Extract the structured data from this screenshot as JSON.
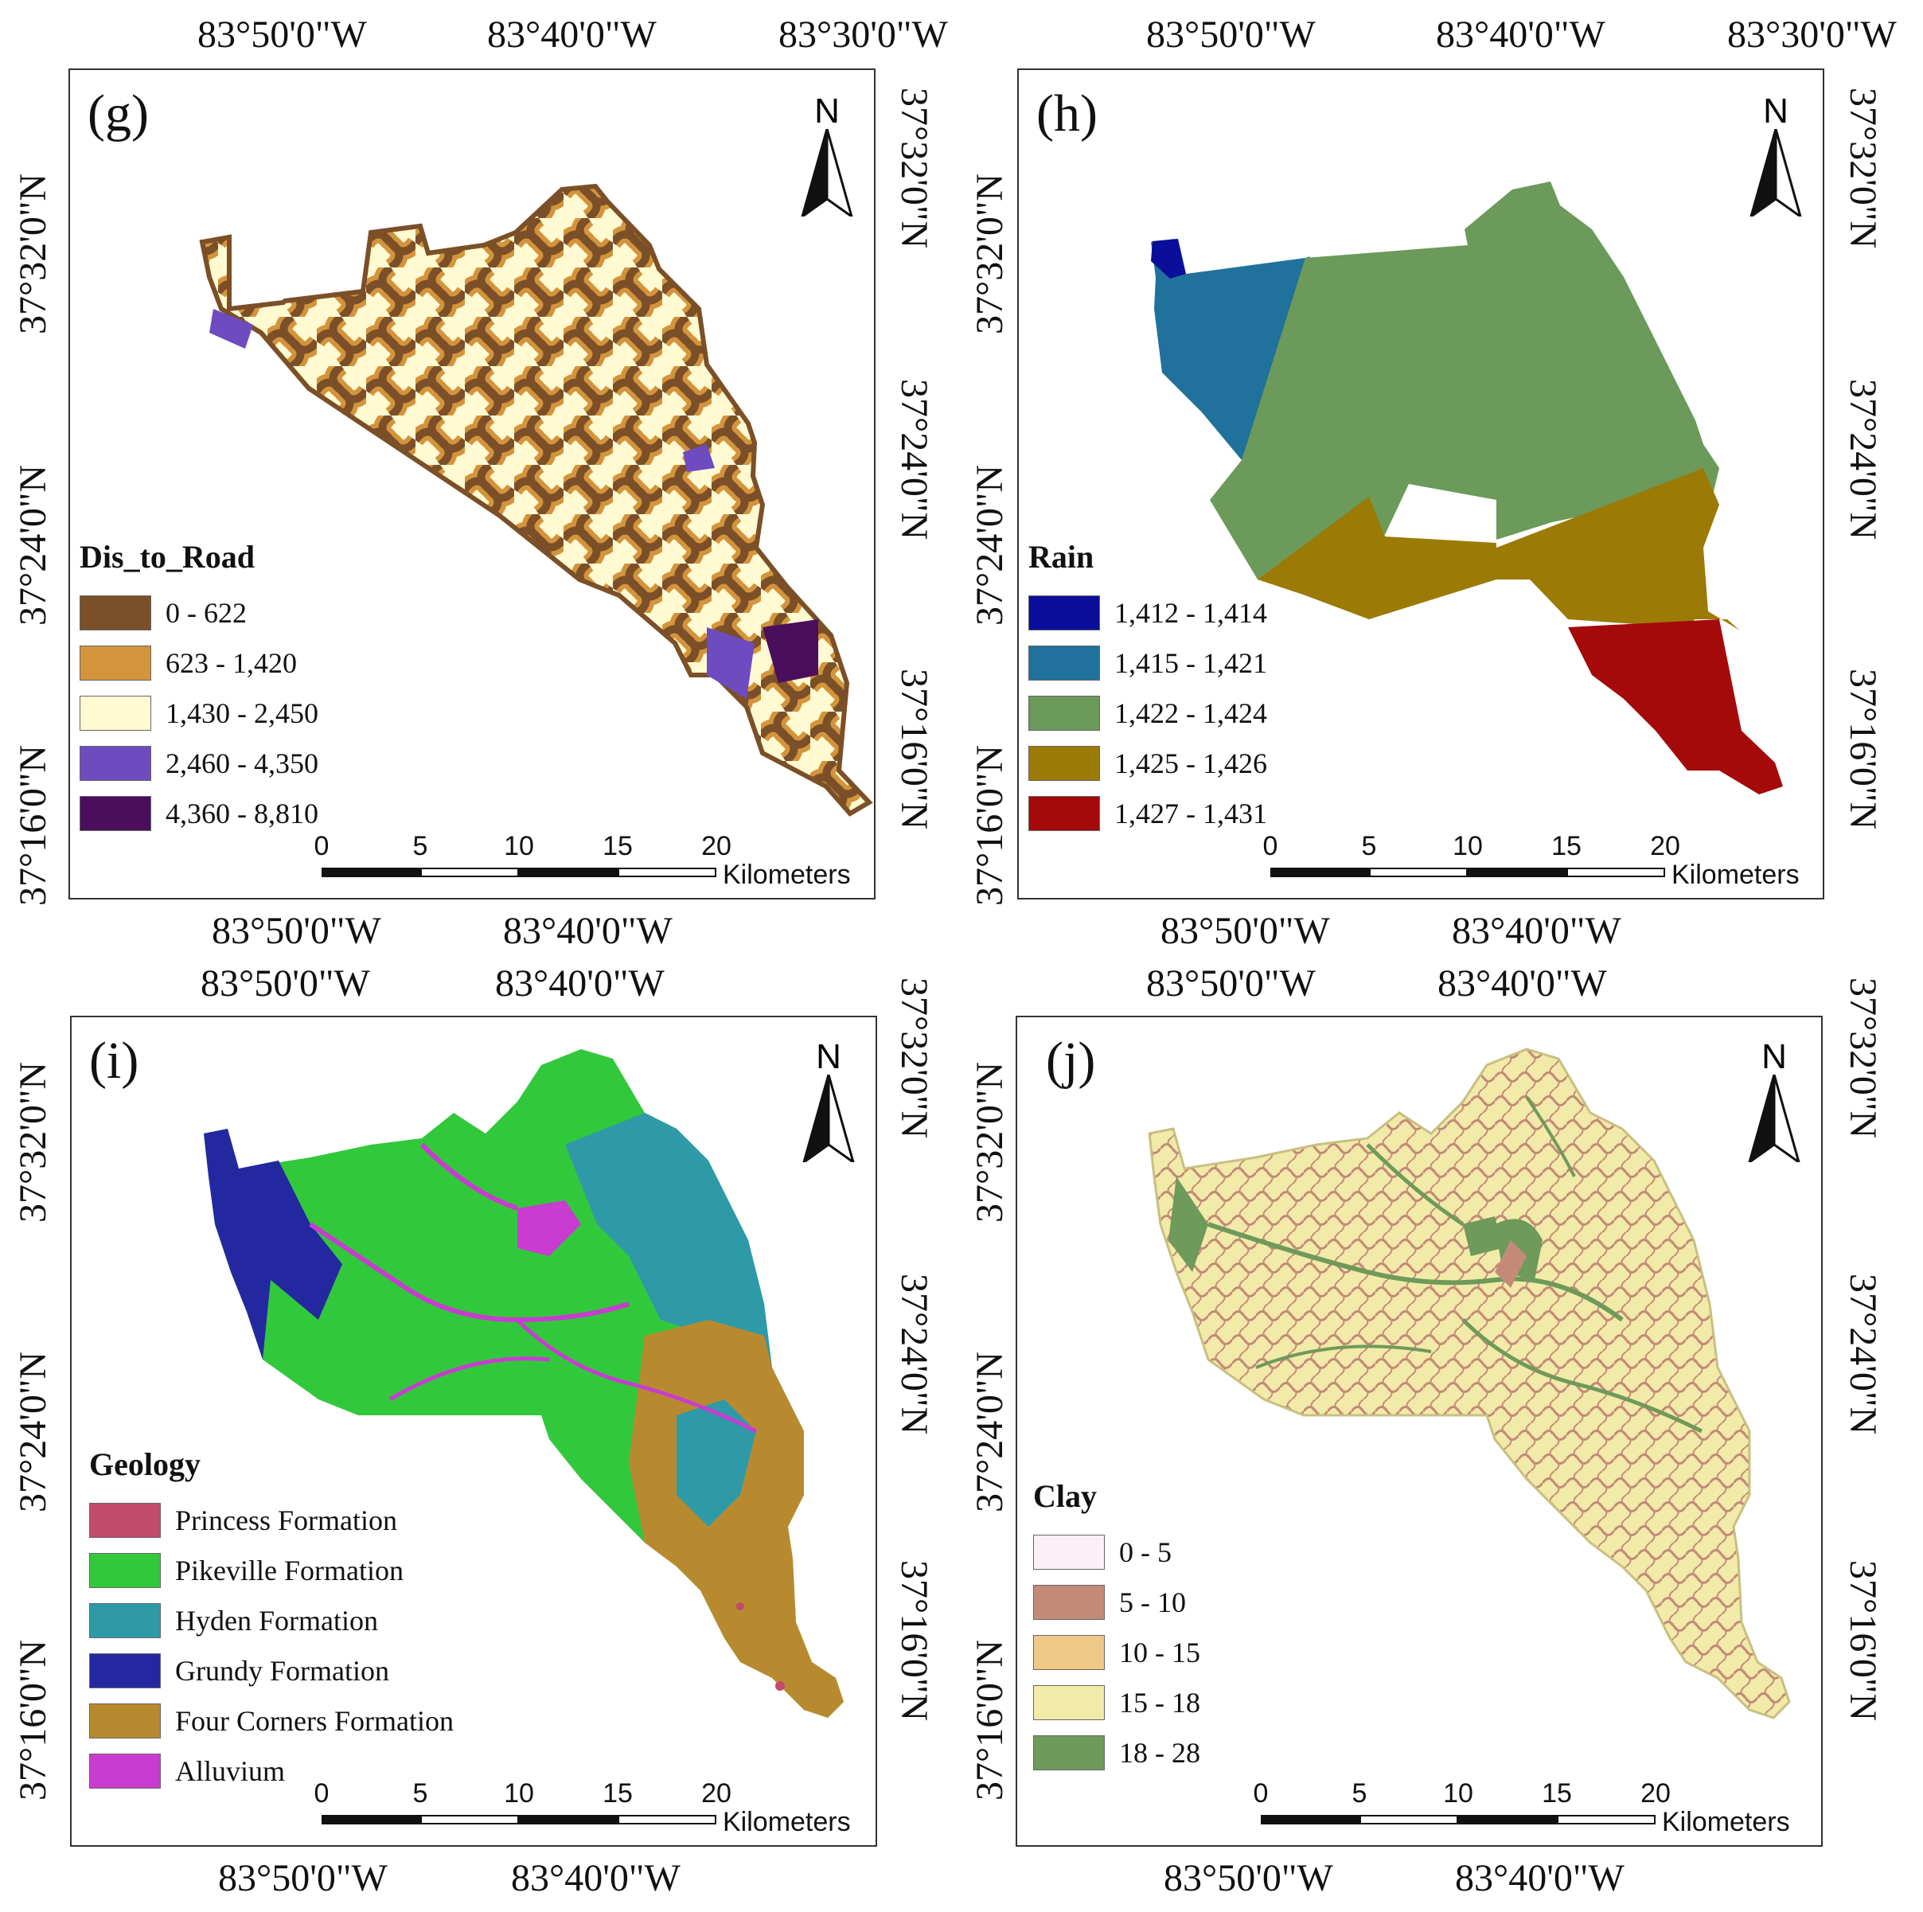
{
  "panels": {
    "g": {
      "letter": "(g)",
      "top_coords": [
        "83°50'0\"W",
        "83°40'0\"W",
        "83°30'0\"W"
      ],
      "bottom_coords": [
        "83°50'0\"W",
        "83°40'0\"W"
      ],
      "left_coords": [
        "37°32'0\"N",
        "37°24'0\"N",
        "37°16'0\"N"
      ],
      "right_coords": [
        "37°32'0\"N",
        "37°24'0\"N",
        "37°16'0\"N"
      ],
      "north_label": "N",
      "legend": {
        "title": "Dis_to_Road",
        "items": [
          {
            "label": "0 - 622",
            "color": "#7B4F27"
          },
          {
            "label": "623 - 1,420",
            "color": "#D4943C"
          },
          {
            "label": "1,430 - 2,450",
            "color": "#FFFAD2"
          },
          {
            "label": "2,460 - 4,350",
            "color": "#6D4CC0"
          },
          {
            "label": "4,360 - 8,810",
            "color": "#4A0E5C"
          }
        ]
      },
      "scale": {
        "ticks": [
          "0",
          "5",
          "10",
          "15",
          "20"
        ],
        "unit": "Kilometers"
      }
    },
    "h": {
      "letter": "(h)",
      "top_coords": [
        "83°50'0\"W",
        "83°40'0\"W",
        "83°30'0\"W"
      ],
      "bottom_coords": [
        "83°50'0\"W",
        "83°40'0\"W"
      ],
      "left_coords": [
        "37°32'0\"N",
        "37°24'0\"N",
        "37°16'0\"N"
      ],
      "right_coords": [
        "37°32'0\"N",
        "37°24'0\"N",
        "37°16'0\"N"
      ],
      "north_label": "N",
      "legend": {
        "title": "Rain",
        "items": [
          {
            "label": "1,412 - 1,414",
            "color": "#0A0E9A"
          },
          {
            "label": "1,415 - 1,421",
            "color": "#20719B"
          },
          {
            "label": "1,422 - 1,424",
            "color": "#6B9A5A"
          },
          {
            "label": "1,425 - 1,426",
            "color": "#9C7A06"
          },
          {
            "label": "1,427 - 1,431",
            "color": "#A50A0A"
          }
        ]
      },
      "scale": {
        "ticks": [
          "0",
          "5",
          "10",
          "15",
          "20"
        ],
        "unit": "Kilometers"
      }
    },
    "i": {
      "letter": "(i)",
      "top_coords": [
        "83°50'0\"W",
        "83°40'0\"W"
      ],
      "bottom_coords": [
        "83°50'0\"W",
        "83°40'0\"W"
      ],
      "left_coords": [
        "37°32'0\"N",
        "37°24'0\"N",
        "37°16'0\"N"
      ],
      "right_coords": [
        "37°32'0\"N",
        "37°24'0\"N",
        "37°16'0\"N"
      ],
      "north_label": "N",
      "legend": {
        "title": "Geology",
        "items": [
          {
            "label": "Princess Formation",
            "color": "#C24A6A"
          },
          {
            "label": "Pikeville Formation",
            "color": "#32C83C"
          },
          {
            "label": "Hyden Formation",
            "color": "#2E9AA8"
          },
          {
            "label": "Grundy Formation",
            "color": "#2428A0"
          },
          {
            "label": "Four Corners Formation",
            "color": "#B88A30"
          },
          {
            "label": "Alluvium",
            "color": "#C83CD0"
          }
        ]
      },
      "scale": {
        "ticks": [
          "0",
          "5",
          "10",
          "15",
          "20"
        ],
        "unit": "Kilometers"
      }
    },
    "j": {
      "letter": "(j)",
      "top_coords": [
        "83°50'0\"W",
        "83°40'0\"W"
      ],
      "bottom_coords": [
        "83°50'0\"W",
        "83°40'0\"W"
      ],
      "left_coords": [
        "37°32'0\"N",
        "37°24'0\"N",
        "37°16'0\"N"
      ],
      "right_coords": [
        "37°32'0\"N",
        "37°24'0\"N",
        "37°16'0\"N"
      ],
      "north_label": "N",
      "legend": {
        "title": "Clay",
        "items": [
          {
            "label": "0 - 5",
            "color": "#FCEFF8"
          },
          {
            "label": "5 - 10",
            "color": "#C48A78"
          },
          {
            "label": "10 - 15",
            "color": "#F0C888"
          },
          {
            "label": "15 - 18",
            "color": "#F2EAA8"
          },
          {
            "label": "18 - 28",
            "color": "#6E9A5A"
          }
        ]
      },
      "scale": {
        "ticks": [
          "0",
          "5",
          "10",
          "15",
          "20"
        ],
        "unit": "Kilometers"
      }
    }
  }
}
